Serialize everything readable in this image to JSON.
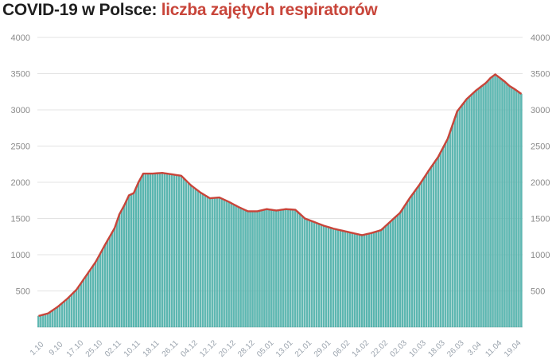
{
  "title": {
    "part1": "COVID-19 w Polsce:",
    "part2": "liczba zajętych respiratorów"
  },
  "colors": {
    "bar": "#5cb8b2",
    "bar_stroke": "#3f9f98",
    "line": "#c8453a",
    "grid": "#e3e3e3",
    "title_accent": "#c8453a"
  },
  "chart_data": {
    "type": "bar",
    "title": "COVID-19 w Polsce: liczba zajętych respiratorów",
    "ylim": [
      0,
      4000
    ],
    "yticks": [
      0,
      500,
      1000,
      1500,
      2000,
      2500,
      3000,
      3500,
      4000
    ],
    "grid": true,
    "legend": "none",
    "x_ticks": [
      "1.10",
      "9.10",
      "17.10",
      "25.10",
      "02.11",
      "10.11",
      "18.11",
      "26.11",
      "04.12",
      "12.12",
      "20.12",
      "28.12",
      "05.01",
      "13.01",
      "21.01",
      "29.01",
      "06.02",
      "14.02",
      "22.02",
      "02.03",
      "10.03",
      "18.03",
      "26.03",
      "3.04",
      "11.04",
      "19.04"
    ],
    "x_start": "2020-10-01",
    "x_end": "2021-04-22",
    "anchors": [
      [
        "2020-10-01",
        155
      ],
      [
        "2020-10-05",
        190
      ],
      [
        "2020-10-09",
        280
      ],
      [
        "2020-10-13",
        390
      ],
      [
        "2020-10-17",
        520
      ],
      [
        "2020-10-21",
        710
      ],
      [
        "2020-10-25",
        900
      ],
      [
        "2020-10-29",
        1140
      ],
      [
        "2020-11-02",
        1370
      ],
      [
        "2020-11-04",
        1560
      ],
      [
        "2020-11-06",
        1680
      ],
      [
        "2020-11-08",
        1820
      ],
      [
        "2020-11-10",
        1850
      ],
      [
        "2020-11-12",
        2000
      ],
      [
        "2020-11-14",
        2120
      ],
      [
        "2020-11-18",
        2120
      ],
      [
        "2020-11-22",
        2130
      ],
      [
        "2020-11-26",
        2110
      ],
      [
        "2020-11-30",
        2090
      ],
      [
        "2020-12-04",
        1960
      ],
      [
        "2020-12-08",
        1860
      ],
      [
        "2020-12-12",
        1780
      ],
      [
        "2020-12-16",
        1790
      ],
      [
        "2020-12-20",
        1730
      ],
      [
        "2020-12-24",
        1660
      ],
      [
        "2020-12-28",
        1600
      ],
      [
        "2021-01-01",
        1600
      ],
      [
        "2021-01-05",
        1630
      ],
      [
        "2021-01-09",
        1610
      ],
      [
        "2021-01-13",
        1630
      ],
      [
        "2021-01-17",
        1620
      ],
      [
        "2021-01-21",
        1500
      ],
      [
        "2021-01-25",
        1450
      ],
      [
        "2021-01-29",
        1400
      ],
      [
        "2021-02-02",
        1360
      ],
      [
        "2021-02-06",
        1330
      ],
      [
        "2021-02-10",
        1300
      ],
      [
        "2021-02-14",
        1270
      ],
      [
        "2021-02-18",
        1300
      ],
      [
        "2021-02-22",
        1340
      ],
      [
        "2021-02-26",
        1460
      ],
      [
        "2021-03-02",
        1580
      ],
      [
        "2021-03-06",
        1780
      ],
      [
        "2021-03-10",
        1960
      ],
      [
        "2021-03-14",
        2160
      ],
      [
        "2021-03-18",
        2350
      ],
      [
        "2021-03-22",
        2600
      ],
      [
        "2021-03-26",
        2980
      ],
      [
        "2021-03-30",
        3150
      ],
      [
        "2021-04-03",
        3270
      ],
      [
        "2021-04-07",
        3370
      ],
      [
        "2021-04-09",
        3440
      ],
      [
        "2021-04-11",
        3490
      ],
      [
        "2021-04-13",
        3440
      ],
      [
        "2021-04-15",
        3390
      ],
      [
        "2021-04-17",
        3330
      ],
      [
        "2021-04-19",
        3290
      ],
      [
        "2021-04-22",
        3220
      ]
    ]
  }
}
